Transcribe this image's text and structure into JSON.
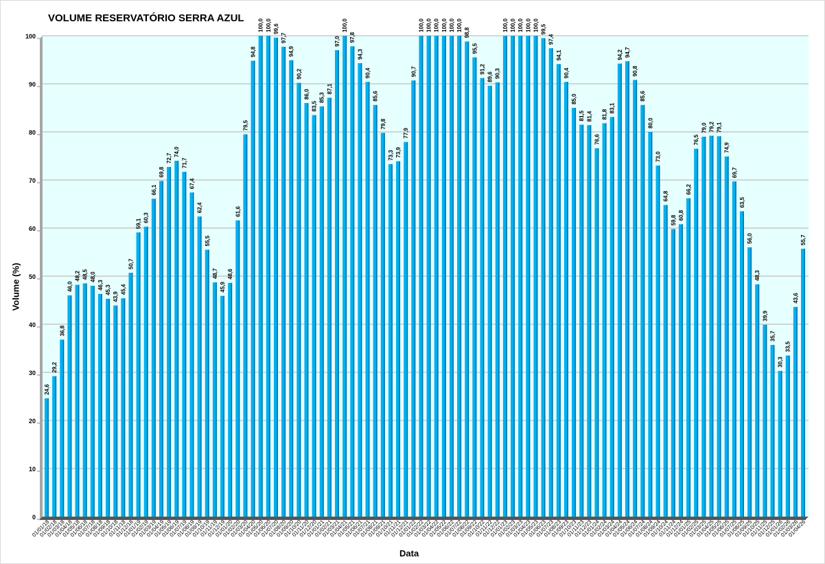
{
  "chart_data": {
    "type": "bar",
    "title": "VOLUME RESERVATÓRIO SERRA AZUL",
    "xlabel": "Data",
    "ylabel": "Volume (%)",
    "ylim": [
      0,
      100
    ],
    "yticks": [
      0,
      10,
      20,
      30,
      40,
      50,
      60,
      70,
      80,
      90,
      100
    ],
    "grid": true,
    "colors": {
      "bar": "#00b0f0",
      "bar_side": "#0070a8",
      "plot_bg": "#e6ffff",
      "grid": "#c8c8c8"
    },
    "categories": [
      "01/01/18",
      "01/02/18",
      "01/03/18",
      "01/04/18",
      "01/05/18",
      "01/06/18",
      "01/07/18",
      "01/08/18",
      "01/09/18",
      "01/10/18",
      "01/11/18",
      "01/12/18",
      "01/01/19",
      "01/02/19",
      "01/03/19",
      "01/04/19",
      "01/05/19",
      "01/06/19",
      "01/07/19",
      "01/08/19",
      "01/09/19",
      "01/10/19",
      "01/11/19",
      "01/12/19",
      "01/01/20",
      "01/02/20",
      "01/03/20",
      "01/04/20",
      "01/05/20",
      "01/06/20",
      "01/07/20",
      "01/08/20",
      "01/09/20",
      "01/10/20",
      "01/11/20",
      "01/12/20",
      "01/01/21",
      "01/02/21",
      "01/03/21",
      "01/04/21",
      "01/05/21",
      "01/06/21",
      "01/07/21",
      "01/08/21",
      "01/09/21",
      "01/10/21",
      "01/11/21",
      "01/12/21",
      "01/01/22",
      "01/02/22",
      "01/03/22",
      "01/04/22",
      "01/05/22",
      "01/06/22",
      "01/07/22",
      "01/08/22",
      "01/09/22",
      "01/10/22",
      "01/11/22",
      "01/12/22",
      "01/01/23",
      "01/02/23",
      "01/03/23",
      "01/04/23",
      "01/05/23",
      "01/06/23",
      "01/07/23",
      "01/08/23",
      "01/09/23",
      "01/10/23",
      "01/11/23",
      "01/12/23",
      "01/01/24",
      "01/02/24",
      "01/03/24",
      "01/04/24",
      "01/05/24",
      "01/06/24",
      "01/07/24",
      "01/08/24",
      "01/09/24",
      "01/10/24",
      "01/11/24",
      "01/12/24",
      "01/01/25",
      "01/02/25",
      "01/03/25",
      "01/04/25",
      "01/05/25",
      "01/06/25",
      "01/07/25",
      "01/08/25",
      "01/09/25",
      "01/10/25",
      "01/11/25",
      "01/12/25",
      "01/01/26",
      "01/02/26",
      "01/03/26",
      "01/04/26"
    ],
    "values": [
      24.6,
      29.2,
      36.8,
      46.0,
      48.2,
      48.5,
      48.0,
      46.3,
      45.3,
      43.9,
      45.4,
      50.7,
      59.1,
      60.3,
      66.1,
      69.8,
      72.7,
      74.0,
      71.7,
      67.4,
      62.4,
      55.5,
      48.7,
      45.9,
      48.6,
      61.6,
      79.5,
      94.8,
      100.0,
      100.0,
      99.6,
      97.7,
      94.9,
      90.2,
      86.0,
      83.5,
      85.3,
      87.1,
      97.0,
      100.0,
      97.8,
      94.3,
      90.4,
      85.6,
      79.8,
      73.3,
      73.9,
      77.9,
      90.7,
      100.0,
      100.0,
      100.0,
      100.0,
      100.0,
      100.0,
      98.8,
      95.5,
      91.2,
      89.6,
      90.3,
      100.0,
      100.0,
      100.0,
      100.0,
      100.0,
      99.5,
      97.4,
      94.1,
      90.4,
      85.0,
      81.5,
      81.4,
      76.6,
      81.8,
      83.1,
      94.2,
      94.7,
      90.8,
      85.6,
      80.0,
      73.0,
      64.8,
      59.8,
      60.8,
      66.2,
      76.5,
      79.0,
      79.2,
      79.1,
      74.9,
      69.7,
      63.5,
      56.0,
      48.3,
      39.9,
      35.7,
      30.3,
      33.5,
      43.6,
      55.7
    ]
  }
}
